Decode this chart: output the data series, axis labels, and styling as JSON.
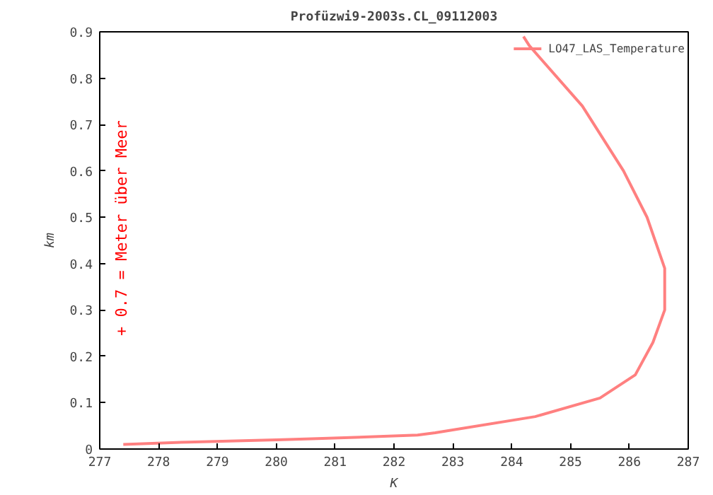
{
  "chart_data": {
    "type": "line",
    "title": "Profüzwi9-2003s.CL_09112003",
    "xlabel": "K",
    "ylabel": "km",
    "annotations": [
      "+ 0.7 = Meter über Meer"
    ],
    "x": [
      277.4,
      278.5,
      280.0,
      280.6,
      282.4,
      282.7,
      284.4,
      285.5,
      286.1,
      286.4,
      286.6,
      286.6,
      286.3,
      285.9,
      285.2,
      284.3,
      284.2
    ],
    "series": [
      {
        "name": "LO47_LAS_Temperature",
        "color": "#ff8080",
        "values": [
          0.01,
          0.015,
          0.02,
          0.022,
          0.03,
          0.035,
          0.07,
          0.11,
          0.16,
          0.23,
          0.3,
          0.39,
          0.5,
          0.6,
          0.74,
          0.87,
          0.89
        ]
      }
    ],
    "xlim": [
      277,
      287
    ],
    "ylim": [
      0,
      0.9
    ],
    "xticks": [
      277,
      278,
      279,
      280,
      281,
      282,
      283,
      284,
      285,
      286,
      287
    ],
    "yticks": [
      0,
      0.1,
      0.2,
      0.3,
      0.4,
      0.5,
      0.6,
      0.7,
      0.8,
      0.9
    ],
    "grid": false,
    "legend": "top right",
    "marker": "none",
    "line_style": "solid"
  }
}
